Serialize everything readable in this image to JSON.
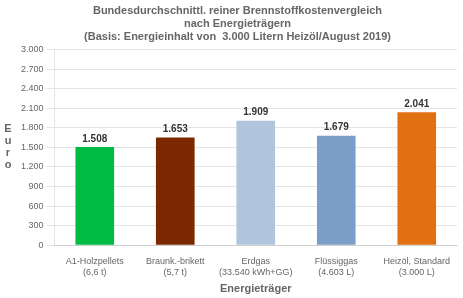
{
  "chart_data": {
    "type": "bar",
    "title": "Bundesdurchschnittl. reiner Brennstoffkostenvergleich\nnach Energieträgern\n(Basis: Energieinhalt von  3.000 Litern Heizöl/August 2019)",
    "xlabel": "Energieträger",
    "ylabel": "E\nu\nr\no",
    "categories": [
      "A1-Holzpellets\n(6,6 t)",
      "Braunk.-brikett\n(5,7 t)",
      "Erdgas\n(33.540 kWh+GG)",
      "Flüssiggas\n(4.603 L)",
      "Heizöl, Standard\n(3.000 L)"
    ],
    "values": [
      1508,
      1653,
      1909,
      1679,
      2041
    ],
    "value_labels": [
      "1.508",
      "1.653",
      "1.909",
      "1.679",
      "2.041"
    ],
    "data_labels": true,
    "colors": [
      "#00BB44",
      "#7B2800",
      "#B0C4DE",
      "#7B9EC8",
      "#E07010"
    ],
    "ylim": [
      0,
      3000
    ],
    "yticks": [
      0,
      300,
      600,
      900,
      {
        "value": 1200,
        "label": "1.200"
      },
      {
        "value": 1500,
        "label": "1.500"
      },
      {
        "value": 1800,
        "label": "1.800"
      },
      {
        "value": 2100,
        "label": "2.100"
      },
      {
        "value": 2400,
        "label": "2.400"
      },
      {
        "value": 2700,
        "label": "2.700"
      },
      {
        "value": 3000,
        "label": "3.000"
      }
    ],
    "grid": true
  }
}
